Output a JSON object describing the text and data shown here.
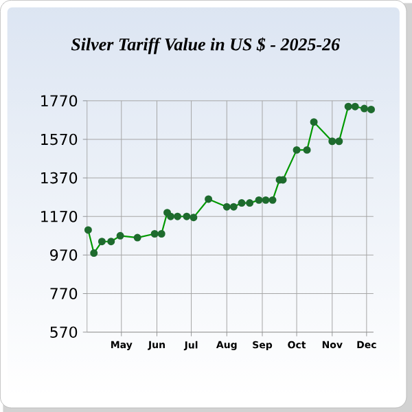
{
  "chart_data": {
    "type": "line",
    "title": "Silver Tariff Value in US $ - 2025-26",
    "x": [
      "2025-04-02",
      "2025-04-07",
      "2025-04-14",
      "2025-04-22",
      "2025-04-30",
      "2025-05-15",
      "2025-05-30",
      "2025-06-05",
      "2025-06-10",
      "2025-06-13",
      "2025-06-19",
      "2025-06-27",
      "2025-07-03",
      "2025-07-16",
      "2025-08-01",
      "2025-08-07",
      "2025-08-14",
      "2025-08-21",
      "2025-08-29",
      "2025-09-04",
      "2025-09-10",
      "2025-09-16",
      "2025-09-19",
      "2025-10-01",
      "2025-10-10",
      "2025-10-16",
      "2025-11-01",
      "2025-11-07",
      "2025-11-15",
      "2025-11-21",
      "2025-11-29",
      "2025-12-05"
    ],
    "series": [
      {
        "color": "#1e6b2e",
        "values": [
          1100,
          980,
          1040,
          1040,
          1070,
          1060,
          1080,
          1080,
          1190,
          1170,
          1170,
          1170,
          1165,
          1260,
          1220,
          1220,
          1240,
          1240,
          1255,
          1255,
          1255,
          1360,
          1360,
          1515,
          1515,
          1660,
          1560,
          1560,
          1740,
          1740,
          1730,
          1725
        ]
      }
    ],
    "xlim": [
      "2025-04-01",
      "2025-12-07"
    ],
    "xticks": [
      {
        "value": "2025-05-01",
        "label": "May"
      },
      {
        "value": "2025-06-01",
        "label": "Jun"
      },
      {
        "value": "2025-07-01",
        "label": "Jul"
      },
      {
        "value": "2025-08-01",
        "label": "Aug"
      },
      {
        "value": "2025-09-01",
        "label": "Sep"
      },
      {
        "value": "2025-10-01",
        "label": "Oct"
      },
      {
        "value": "2025-11-01",
        "label": "Nov"
      },
      {
        "value": "2025-12-01",
        "label": "Dec"
      }
    ],
    "ylim": [
      570,
      1770
    ],
    "yticks": [
      570,
      770,
      970,
      1170,
      1370,
      1570,
      1770
    ],
    "grid": true,
    "marker": "circle",
    "line_style": "solid"
  }
}
